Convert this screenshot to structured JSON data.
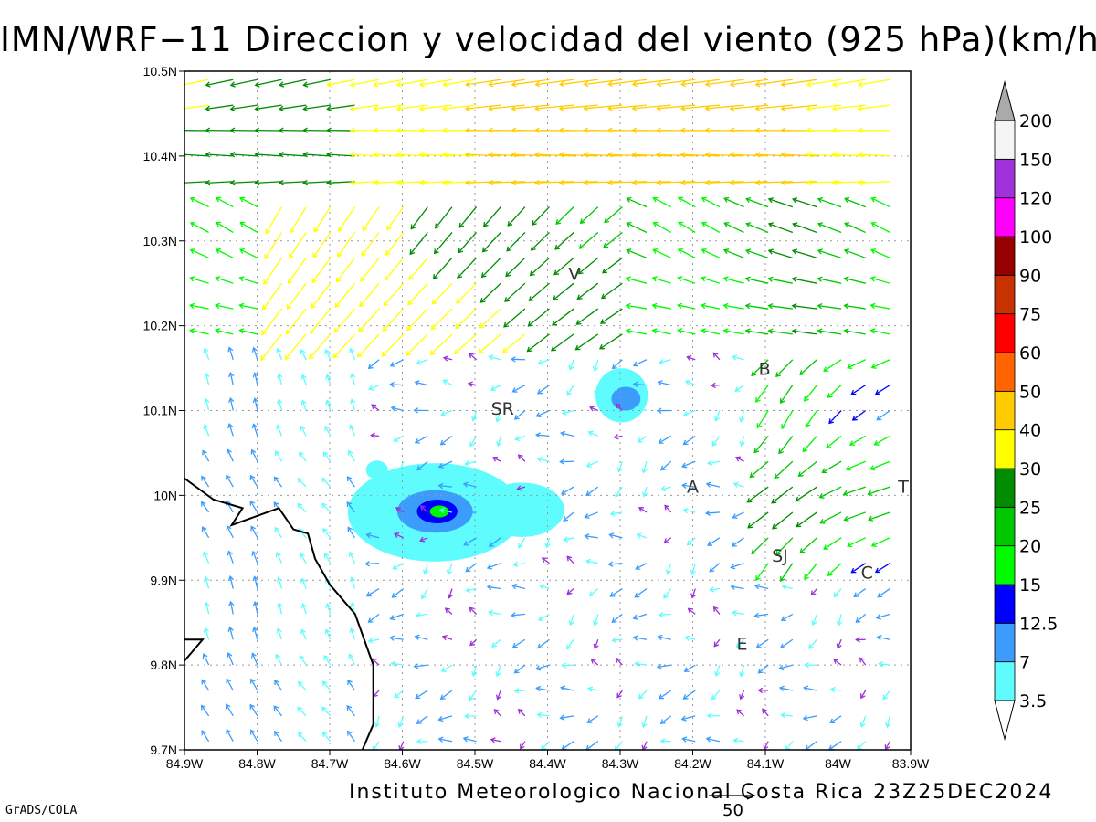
{
  "title": "IMN/WRF−11 Direccion y velocidad del viento (925 hPa)(km/h)",
  "footer": "Instituto Meteorologico Nacional Costa Rica 23Z25DEC2024",
  "software": "GrADS/COLA",
  "reference_vector_label": "50",
  "map": {
    "lon_range": [
      -84.9,
      -83.9
    ],
    "lat_range": [
      9.7,
      10.5
    ],
    "x_ticks": [
      {
        "lon": -84.9,
        "label": "84.9W"
      },
      {
        "lon": -84.8,
        "label": "84.8W"
      },
      {
        "lon": -84.7,
        "label": "84.7W"
      },
      {
        "lon": -84.6,
        "label": "84.6W"
      },
      {
        "lon": -84.5,
        "label": "84.5W"
      },
      {
        "lon": -84.4,
        "label": "84.4W"
      },
      {
        "lon": -84.3,
        "label": "84.3W"
      },
      {
        "lon": -84.2,
        "label": "84.2W"
      },
      {
        "lon": -84.1,
        "label": "84.1W"
      },
      {
        "lon": -84.0,
        "label": "84W"
      },
      {
        "lon": -83.9,
        "label": "83.9W"
      }
    ],
    "y_ticks": [
      {
        "lat": 9.7,
        "label": "9.7N"
      },
      {
        "lat": 9.8,
        "label": "9.8N"
      },
      {
        "lat": 9.9,
        "label": "9.9N"
      },
      {
        "lat": 10.0,
        "label": "10N"
      },
      {
        "lat": 10.1,
        "label": "10.1N"
      },
      {
        "lat": 10.2,
        "label": "10.2N"
      },
      {
        "lat": 10.3,
        "label": "10.3N"
      },
      {
        "lat": 10.4,
        "label": "10.4N"
      },
      {
        "lat": 10.5,
        "label": "10.5N"
      }
    ],
    "places": [
      {
        "label": "V",
        "lon": -84.363,
        "lat": 10.254
      },
      {
        "label": "B",
        "lon": -84.101,
        "lat": 10.142
      },
      {
        "label": "SR",
        "lon": -84.462,
        "lat": 10.095
      },
      {
        "label": "A",
        "lon": -84.2,
        "lat": 10.003
      },
      {
        "label": "T",
        "lon": -83.91,
        "lat": 10.003
      },
      {
        "label": "SJ",
        "lon": -84.08,
        "lat": 9.922
      },
      {
        "label": "C",
        "lon": -83.96,
        "lat": 9.902
      },
      {
        "label": "E",
        "lon": -84.132,
        "lat": 9.818
      }
    ],
    "coastline": [
      [
        [
          -84.9,
          10.02
        ],
        [
          -84.86,
          9.995
        ],
        [
          -84.82,
          9.985
        ],
        [
          -84.835,
          9.965
        ],
        [
          -84.77,
          9.985
        ],
        [
          -84.75,
          9.96
        ],
        [
          -84.73,
          9.955
        ],
        [
          -84.72,
          9.925
        ],
        [
          -84.7,
          9.895
        ],
        [
          -84.665,
          9.86
        ],
        [
          -84.64,
          9.8
        ],
        [
          -84.64,
          9.73
        ],
        [
          -84.655,
          9.7
        ]
      ],
      [
        [
          -84.9,
          9.805
        ],
        [
          -84.875,
          9.83
        ],
        [
          -84.9,
          9.83
        ]
      ]
    ],
    "shaded_regions": [
      {
        "lon": -84.555,
        "lat": 9.98,
        "rx": 0.12,
        "ry": 0.058,
        "level": "3.5"
      },
      {
        "lon": -84.555,
        "lat": 9.981,
        "rx": 0.052,
        "ry": 0.025,
        "level": "7"
      },
      {
        "lon": -84.552,
        "lat": 9.981,
        "rx": 0.028,
        "ry": 0.014,
        "level": "12.5"
      },
      {
        "lon": -84.549,
        "lat": 9.981,
        "rx": 0.013,
        "ry": 0.007,
        "level": "15"
      },
      {
        "lon": -84.435,
        "lat": 9.983,
        "rx": 0.058,
        "ry": 0.032,
        "level": "3.5"
      },
      {
        "lon": -84.635,
        "lat": 10.03,
        "rx": 0.015,
        "ry": 0.011,
        "level": "3.5"
      },
      {
        "lon": -84.298,
        "lat": 10.118,
        "rx": 0.036,
        "ry": 0.032,
        "level": "3.5"
      },
      {
        "lon": -84.292,
        "lat": 10.114,
        "rx": 0.02,
        "ry": 0.014,
        "level": "7"
      }
    ]
  },
  "colorbar": {
    "levels": [
      {
        "label": "3.5",
        "color": "#5efcfc"
      },
      {
        "label": "7",
        "color": "#3c9cfc"
      },
      {
        "label": "12.5",
        "color": "#0000ff"
      },
      {
        "label": "15",
        "color": "#00fa00"
      },
      {
        "label": "20",
        "color": "#00c800"
      },
      {
        "label": "25",
        "color": "#008c00"
      },
      {
        "label": "30",
        "color": "#ffff00"
      },
      {
        "label": "40",
        "color": "#ffcc00"
      },
      {
        "label": "50",
        "color": "#ff6400"
      },
      {
        "label": "60",
        "color": "#ff0000"
      },
      {
        "label": "75",
        "color": "#c83200"
      },
      {
        "label": "90",
        "color": "#960000"
      },
      {
        "label": "100",
        "color": "#ff00ff"
      },
      {
        "label": "120",
        "color": "#a032dc"
      },
      {
        "label": "150",
        "color": "#f5f5f5"
      },
      {
        "label": "200",
        "color": "#aaaaaa"
      }
    ]
  },
  "wind_field": {
    "description_of_regimes": "strong easterly flow north of 10.35N, cyclonic turning near 84.55W 10.3N, light variable winds south of 10.1N",
    "regimes": [
      {
        "lon_range": [
          -84.9,
          -83.9
        ],
        "lat_range": [
          10.42,
          10.5
        ],
        "direction_to_deg": 180,
        "speed_kmh": 40
      },
      {
        "lon_range": [
          -84.5,
          -84.2
        ],
        "lat_range": [
          10.3,
          10.42
        ],
        "direction_to_deg": 170,
        "speed_kmh": 50
      },
      {
        "lon_range": [
          -84.7,
          -84.4
        ],
        "lat_range": [
          10.15,
          10.3
        ],
        "direction_to_deg": 265,
        "speed_kmh": 25
      },
      {
        "lon_range": [
          -84.9,
          -84.7
        ],
        "lat_range": [
          9.7,
          10.1
        ],
        "direction_to_deg": 95,
        "speed_kmh": 6
      },
      {
        "lon_range": [
          -84.5,
          -84.2
        ],
        "lat_range": [
          9.7,
          10.1
        ],
        "direction_to_deg": 210,
        "speed_kmh": 4
      },
      {
        "lon_range": [
          -84.1,
          -83.9
        ],
        "lat_range": [
          9.9,
          10.05
        ],
        "direction_to_deg": 225,
        "speed_kmh": 25
      }
    ]
  }
}
